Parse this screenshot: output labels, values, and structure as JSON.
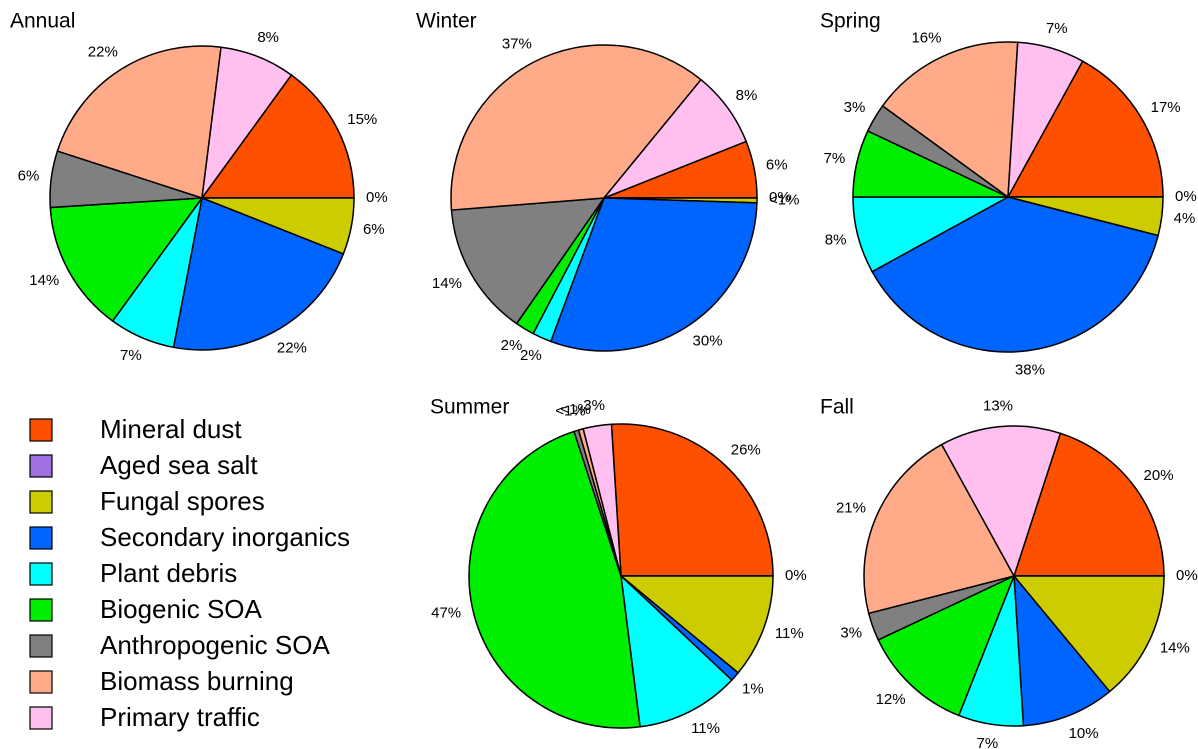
{
  "chart_data": [
    {
      "type": "pie",
      "title": "Annual",
      "legend": true,
      "categories": [
        "Mineral dust",
        "Aged sea salt",
        "Fungal spores",
        "Secondary inorganics",
        "Plant debris",
        "Biogenic SOA",
        "Anthropogenic SOA",
        "Biomass burning",
        "Primary traffic"
      ],
      "colors": [
        "#ff5000",
        "#a070e0",
        "#cccc00",
        "#0064ff",
        "#00ffff",
        "#00ee00",
        "#808080",
        "#ffaa88",
        "#ffc0f0"
      ],
      "values": [
        15,
        0,
        6,
        22,
        7,
        14,
        6,
        22,
        8
      ],
      "value_labels": [
        "15%",
        "0%",
        "6%",
        "22%",
        "7%",
        "14%",
        "6%",
        "22%",
        "8%"
      ]
    },
    {
      "type": "pie",
      "title": "Winter",
      "categories": [
        "Mineral dust",
        "Aged sea salt",
        "Fungal spores",
        "Secondary inorganics",
        "Plant debris",
        "Biogenic SOA",
        "Anthropogenic SOA",
        "Biomass burning",
        "Primary traffic"
      ],
      "colors": [
        "#ff5000",
        "#a070e0",
        "#cccc00",
        "#0064ff",
        "#00ffff",
        "#00ee00",
        "#808080",
        "#ffaa88",
        "#ffc0f0"
      ],
      "values": [
        6,
        0,
        0.5,
        30,
        2,
        2,
        14,
        37,
        8
      ],
      "value_labels": [
        "6%",
        "0%",
        "<1%",
        "30%",
        "2%",
        "2%",
        "14%",
        "37%",
        "8%"
      ]
    },
    {
      "type": "pie",
      "title": "Spring",
      "categories": [
        "Mineral dust",
        "Aged sea salt",
        "Fungal spores",
        "Secondary inorganics",
        "Plant debris",
        "Biogenic SOA",
        "Anthropogenic SOA",
        "Biomass burning",
        "Primary traffic"
      ],
      "colors": [
        "#ff5000",
        "#a070e0",
        "#cccc00",
        "#0064ff",
        "#00ffff",
        "#00ee00",
        "#808080",
        "#ffaa88",
        "#ffc0f0"
      ],
      "values": [
        17,
        0,
        4,
        38,
        8,
        7,
        3,
        16,
        7
      ],
      "value_labels": [
        "17%",
        "0%",
        "4%",
        "38%",
        "8%",
        "7%",
        "3%",
        "16%",
        "7%"
      ]
    },
    {
      "type": "pie",
      "title": "Summer",
      "categories": [
        "Mineral dust",
        "Aged sea salt",
        "Fungal spores",
        "Secondary inorganics",
        "Plant debris",
        "Biogenic SOA",
        "Anthropogenic SOA",
        "Biomass burning",
        "Primary traffic"
      ],
      "colors": [
        "#ff5000",
        "#a070e0",
        "#cccc00",
        "#0064ff",
        "#00ffff",
        "#00ee00",
        "#808080",
        "#ffaa88",
        "#ffc0f0"
      ],
      "values": [
        26,
        0,
        11,
        1,
        11,
        47,
        0.5,
        0.5,
        3
      ],
      "value_labels": [
        "26%",
        "0%",
        "11%",
        "1%",
        "11%",
        "47%",
        "<1%",
        "<1%",
        "3%"
      ]
    },
    {
      "type": "pie",
      "title": "Fall",
      "categories": [
        "Mineral dust",
        "Aged sea salt",
        "Fungal spores",
        "Secondary inorganics",
        "Plant debris",
        "Biogenic SOA",
        "Anthropogenic SOA",
        "Biomass burning",
        "Primary traffic"
      ],
      "colors": [
        "#ff5000",
        "#a070e0",
        "#cccc00",
        "#0064ff",
        "#00ffff",
        "#00ee00",
        "#808080",
        "#ffaa88",
        "#ffc0f0"
      ],
      "values": [
        20,
        0,
        14,
        10,
        7,
        12,
        3,
        21,
        13
      ],
      "value_labels": [
        "20%",
        "0%",
        "14%",
        "10%",
        "7%",
        "12%",
        "3%",
        "21%",
        "13%"
      ]
    }
  ]
}
